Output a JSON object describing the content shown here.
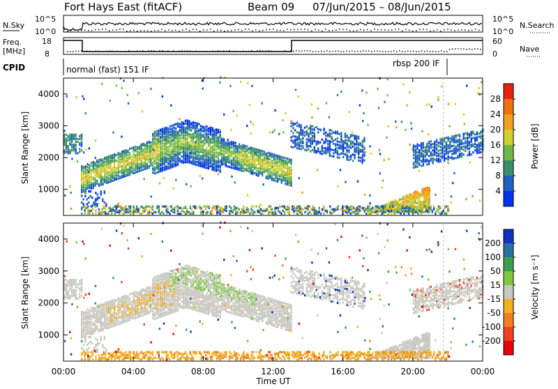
{
  "header": {
    "station": "Fort Hays East (fitACF)",
    "beam": "Beam 09",
    "date_range": "07/Jun/2015 – 08/Jun/2015"
  },
  "panels": {
    "nsky_label": "N.Sky",
    "nsky_top": "10^5",
    "nsky_bottom": "10^0",
    "nsearch_label": "N.Search",
    "nsearch_top": "10^5",
    "nsearch_bottom": "10^0",
    "freq_label_1": "Freq.",
    "freq_label_2": "[MHz]",
    "freq_top": "18",
    "freq_bottom": "8",
    "nave_label": "Nave",
    "nave_top": "60",
    "nave_bottom": "0",
    "cpid_label": "CPID",
    "cpid_mode_1": "normal (fast) 151 IF",
    "cpid_mode_2": "rbsp 200 IF"
  },
  "chart_data": [
    {
      "type": "heatmap",
      "title": "",
      "ylabel": "Slant Range [km]",
      "ylim": [
        180,
        4500
      ],
      "xlim": [
        0,
        24
      ],
      "xticks": [
        "00:00",
        "04:00",
        "08:00",
        "12:00",
        "16:00",
        "20:00",
        "00:00"
      ],
      "yticks": [
        1000,
        2000,
        3000,
        4000
      ],
      "colorbar": {
        "label": "Power [dB]",
        "ticks": [
          "4",
          "8",
          "12",
          "16",
          "20",
          "24",
          "28"
        ],
        "colors": [
          "#0033ee",
          "#2060c0",
          "#3a8e6a",
          "#70b84a",
          "#d0d030",
          "#f0a020",
          "#f07010",
          "#e82010"
        ]
      },
      "features": [
        {
          "name": "main backscatter band",
          "time_start": 1.0,
          "time_end": 13.0,
          "range_start": 1300,
          "range_peak": 2500,
          "peak_time": 7.0,
          "range_end": 1500,
          "power": "8-24"
        },
        {
          "name": "evening band",
          "time_start": 13.0,
          "time_end": 17.0,
          "range_start": 2700,
          "range_end": 2100,
          "power": "4-12"
        },
        {
          "name": "late band",
          "time_start": 20.0,
          "time_end": 24.0,
          "range_start": 2000,
          "range_end": 2500,
          "power": "4-12"
        },
        {
          "name": "near-range patch",
          "time_start": 17.5,
          "time_end": 21.0,
          "range_start": 300,
          "range_end": 1100,
          "power": "12-28"
        }
      ]
    },
    {
      "type": "heatmap",
      "title": "",
      "xlabel": "Time UT",
      "ylabel": "Slant Range [km]",
      "ylim": [
        180,
        4500
      ],
      "xlim": [
        0,
        24
      ],
      "xticks": [
        "00:00",
        "04:00",
        "08:00",
        "12:00",
        "16:00",
        "20:00",
        "00:00"
      ],
      "yticks": [
        1000,
        2000,
        3000,
        4000
      ],
      "colorbar": {
        "label": "Velocity [m s⁻¹]",
        "ticks": [
          "200",
          "100",
          "50",
          "15",
          "-15",
          "-50",
          "-100",
          "-200"
        ],
        "colors": [
          "#1030c0",
          "#2a70a0",
          "#3aa050",
          "#80c840",
          "#c8c8c0",
          "#f0b020",
          "#f08020",
          "#f04020",
          "#e80010"
        ]
      }
    }
  ]
}
